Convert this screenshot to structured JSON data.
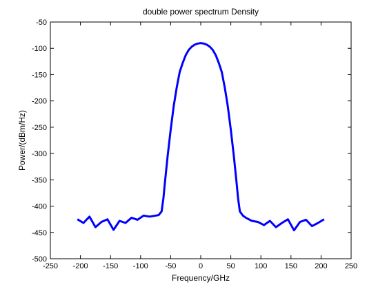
{
  "chart_data": {
    "type": "line",
    "title": "double power spectrum Density",
    "xlabel": "Frequency/GHz",
    "ylabel": "Power/(dBm/Hz)",
    "xlim": [
      -250,
      250
    ],
    "ylim": [
      -500,
      -50
    ],
    "xticks": [
      -250,
      -200,
      -150,
      -100,
      -50,
      0,
      50,
      100,
      150,
      200,
      250
    ],
    "yticks": [
      -50,
      -100,
      -150,
      -200,
      -250,
      -300,
      -350,
      -400,
      -450,
      -500
    ],
    "grid": false,
    "series": [
      {
        "color": "#0000ff",
        "x": [
          -205,
          -195,
          -185,
          -175,
          -165,
          -155,
          -145,
          -135,
          -125,
          -115,
          -105,
          -95,
          -85,
          -75,
          -70,
          -65,
          -62,
          -60,
          -55,
          -50,
          -45,
          -40,
          -35,
          -30,
          -25,
          -20,
          -15,
          -10,
          -5,
          0,
          5,
          10,
          15,
          20,
          25,
          30,
          35,
          40,
          45,
          50,
          55,
          60,
          62,
          65,
          70,
          75,
          85,
          95,
          105,
          115,
          125,
          135,
          145,
          155,
          165,
          175,
          185,
          195,
          205
        ],
        "y": [
          -425,
          -432,
          -420,
          -440,
          -430,
          -425,
          -445,
          -428,
          -432,
          -422,
          -426,
          -418,
          -420,
          -418,
          -417,
          -410,
          -385,
          -360,
          -305,
          -255,
          -210,
          -175,
          -145,
          -128,
          -113,
          -103,
          -97,
          -93,
          -91,
          -90,
          -91,
          -93,
          -97,
          -103,
          -113,
          -128,
          -145,
          -175,
          -210,
          -255,
          -305,
          -360,
          -385,
          -410,
          -418,
          -422,
          -428,
          -430,
          -436,
          -428,
          -440,
          -432,
          -425,
          -446,
          -430,
          -426,
          -438,
          -432,
          -425
        ]
      }
    ]
  }
}
